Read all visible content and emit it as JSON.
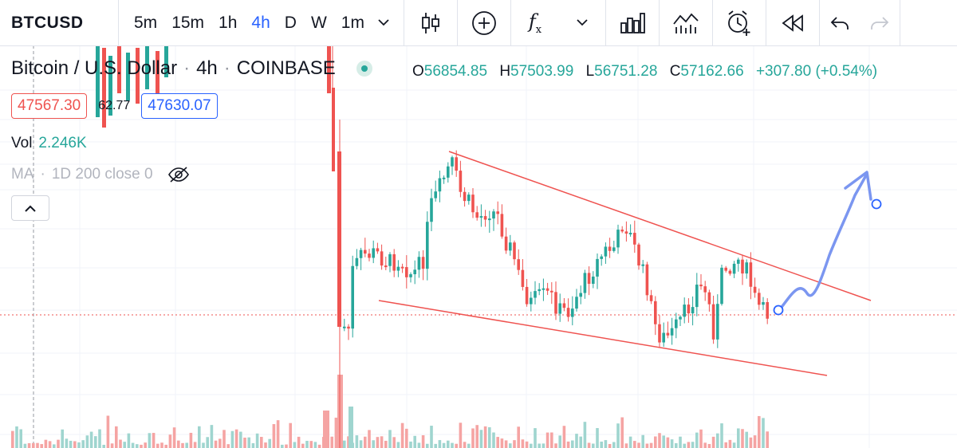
{
  "toolbar": {
    "symbol": "BTCUSD",
    "intervals": [
      "5m",
      "15m",
      "1h",
      "4h",
      "D",
      "W",
      "1m"
    ],
    "active_interval": "4h",
    "icons": [
      "candles-icon",
      "add-compare-icon",
      "indicators-icon",
      "templates-icon",
      "alert-icon",
      "replay-icon",
      "undo-icon",
      "redo-icon"
    ]
  },
  "legend": {
    "symbol_name": "Bitcoin / U.S. Dollar",
    "interval": "4h",
    "exchange": "COINBASE",
    "open_label": "O",
    "open": "56854.85",
    "high_label": "H",
    "high": "57503.99",
    "low_label": "L",
    "low": "56751.28",
    "close_label": "C",
    "close": "57162.66",
    "change": "+307.80 (+0.54%)",
    "bid": "47567.30",
    "spread": "62.77",
    "ask": "47630.07",
    "vol_label": "Vol",
    "vol_value": "2.246K",
    "ma_label": "MA",
    "ma_params": "1D 200 close 0"
  },
  "colors": {
    "up": "#26a69a",
    "down": "#ef5350",
    "up_volume": "#9fd5cf",
    "down_volume": "#f5a4a3",
    "trendline": "#ef5350",
    "arrow": "#7b96f0",
    "accent": "#2962ff"
  }
}
